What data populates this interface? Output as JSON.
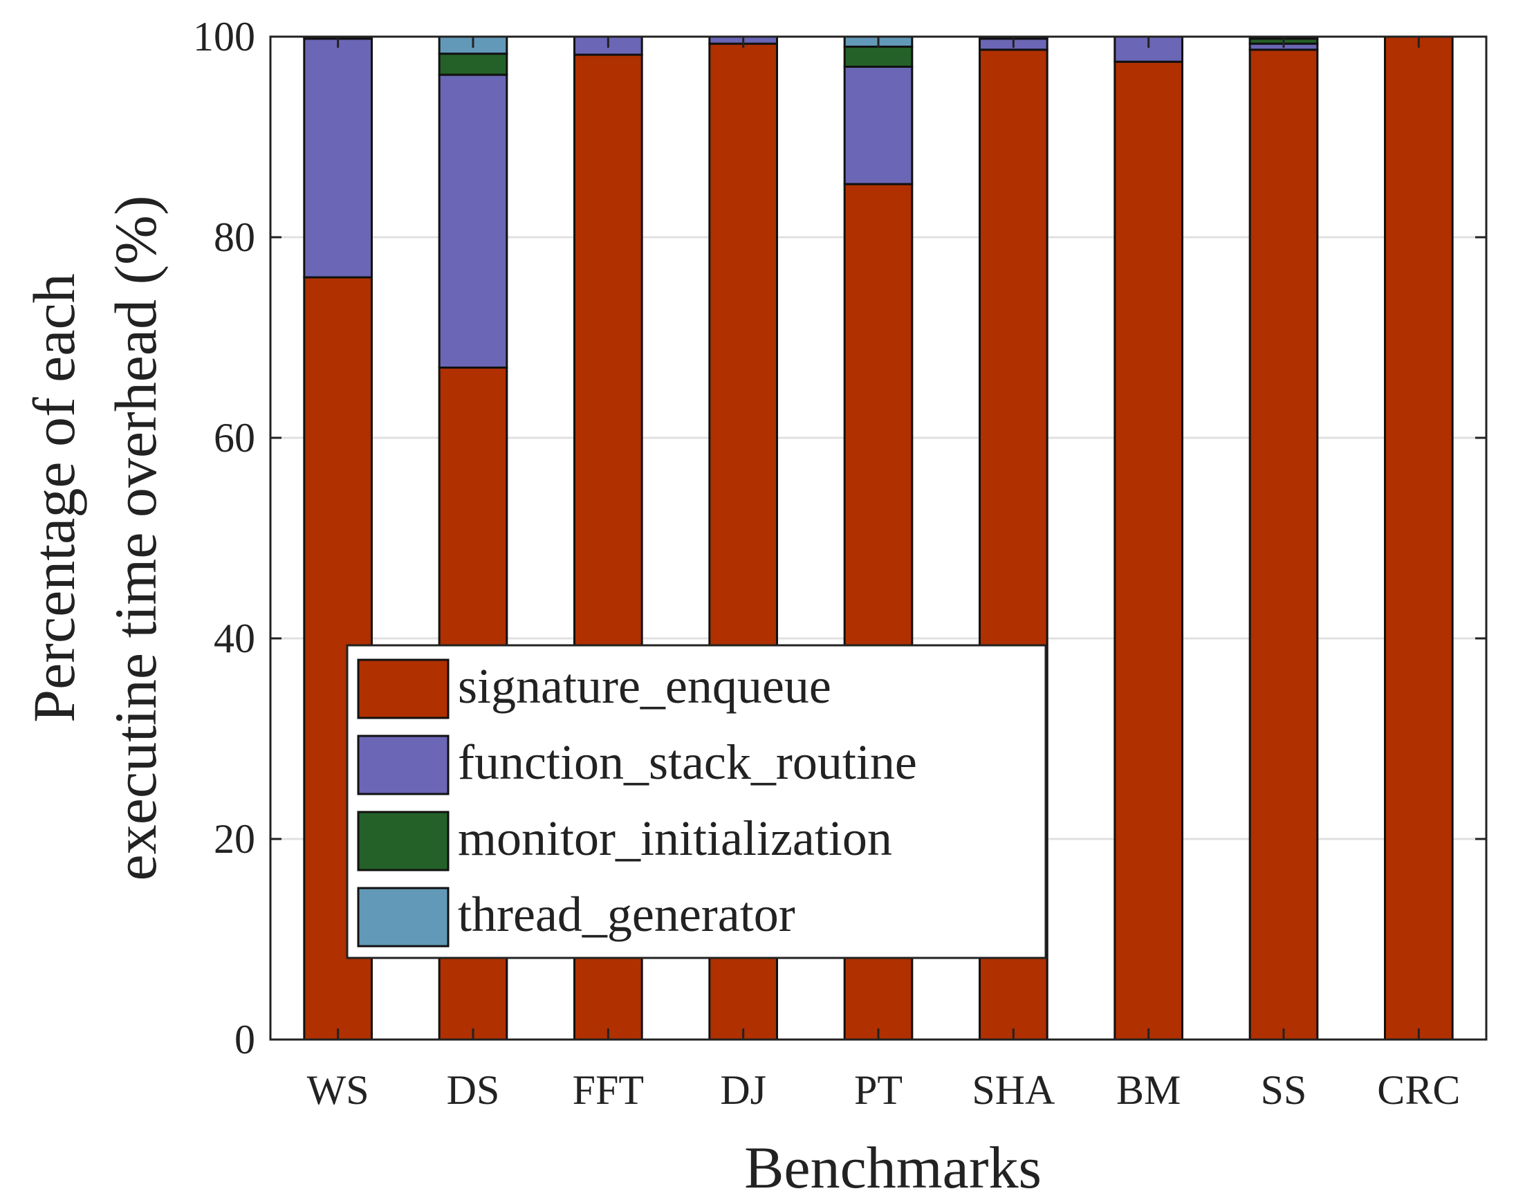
{
  "chart_data": {
    "type": "bar",
    "stacked": true,
    "xlabel": "Benchmarks",
    "ylabel_lines": [
      "Percentage of each",
      "executine time overhead (%)"
    ],
    "ylim": [
      0,
      100
    ],
    "yticks": [
      0,
      20,
      40,
      60,
      80,
      100
    ],
    "grid": true,
    "legend_position": "lower-center-left",
    "categories": [
      "WS",
      "DS",
      "FFT",
      "DJ",
      "PT",
      "SHA",
      "BM",
      "SS",
      "CRC"
    ],
    "series": [
      {
        "name": "signature_enqueue",
        "color": "#B03000",
        "values": [
          76.0,
          67.0,
          98.2,
          99.3,
          85.3,
          98.7,
          97.5,
          98.7,
          100.0
        ]
      },
      {
        "name": "function_stack_routine",
        "color": "#6B66B5",
        "values": [
          23.8,
          29.2,
          1.8,
          0.7,
          11.7,
          1.1,
          2.5,
          0.6,
          0.0
        ]
      },
      {
        "name": "monitor_initialization",
        "color": "#246128",
        "values": [
          0.2,
          2.1,
          0.0,
          0.0,
          2.0,
          0.2,
          0.0,
          0.5,
          0.0
        ]
      },
      {
        "name": "thread_generator",
        "color": "#6399B8",
        "values": [
          0.0,
          1.7,
          0.0,
          0.0,
          1.0,
          0.0,
          0.0,
          0.2,
          0.0
        ]
      }
    ]
  }
}
